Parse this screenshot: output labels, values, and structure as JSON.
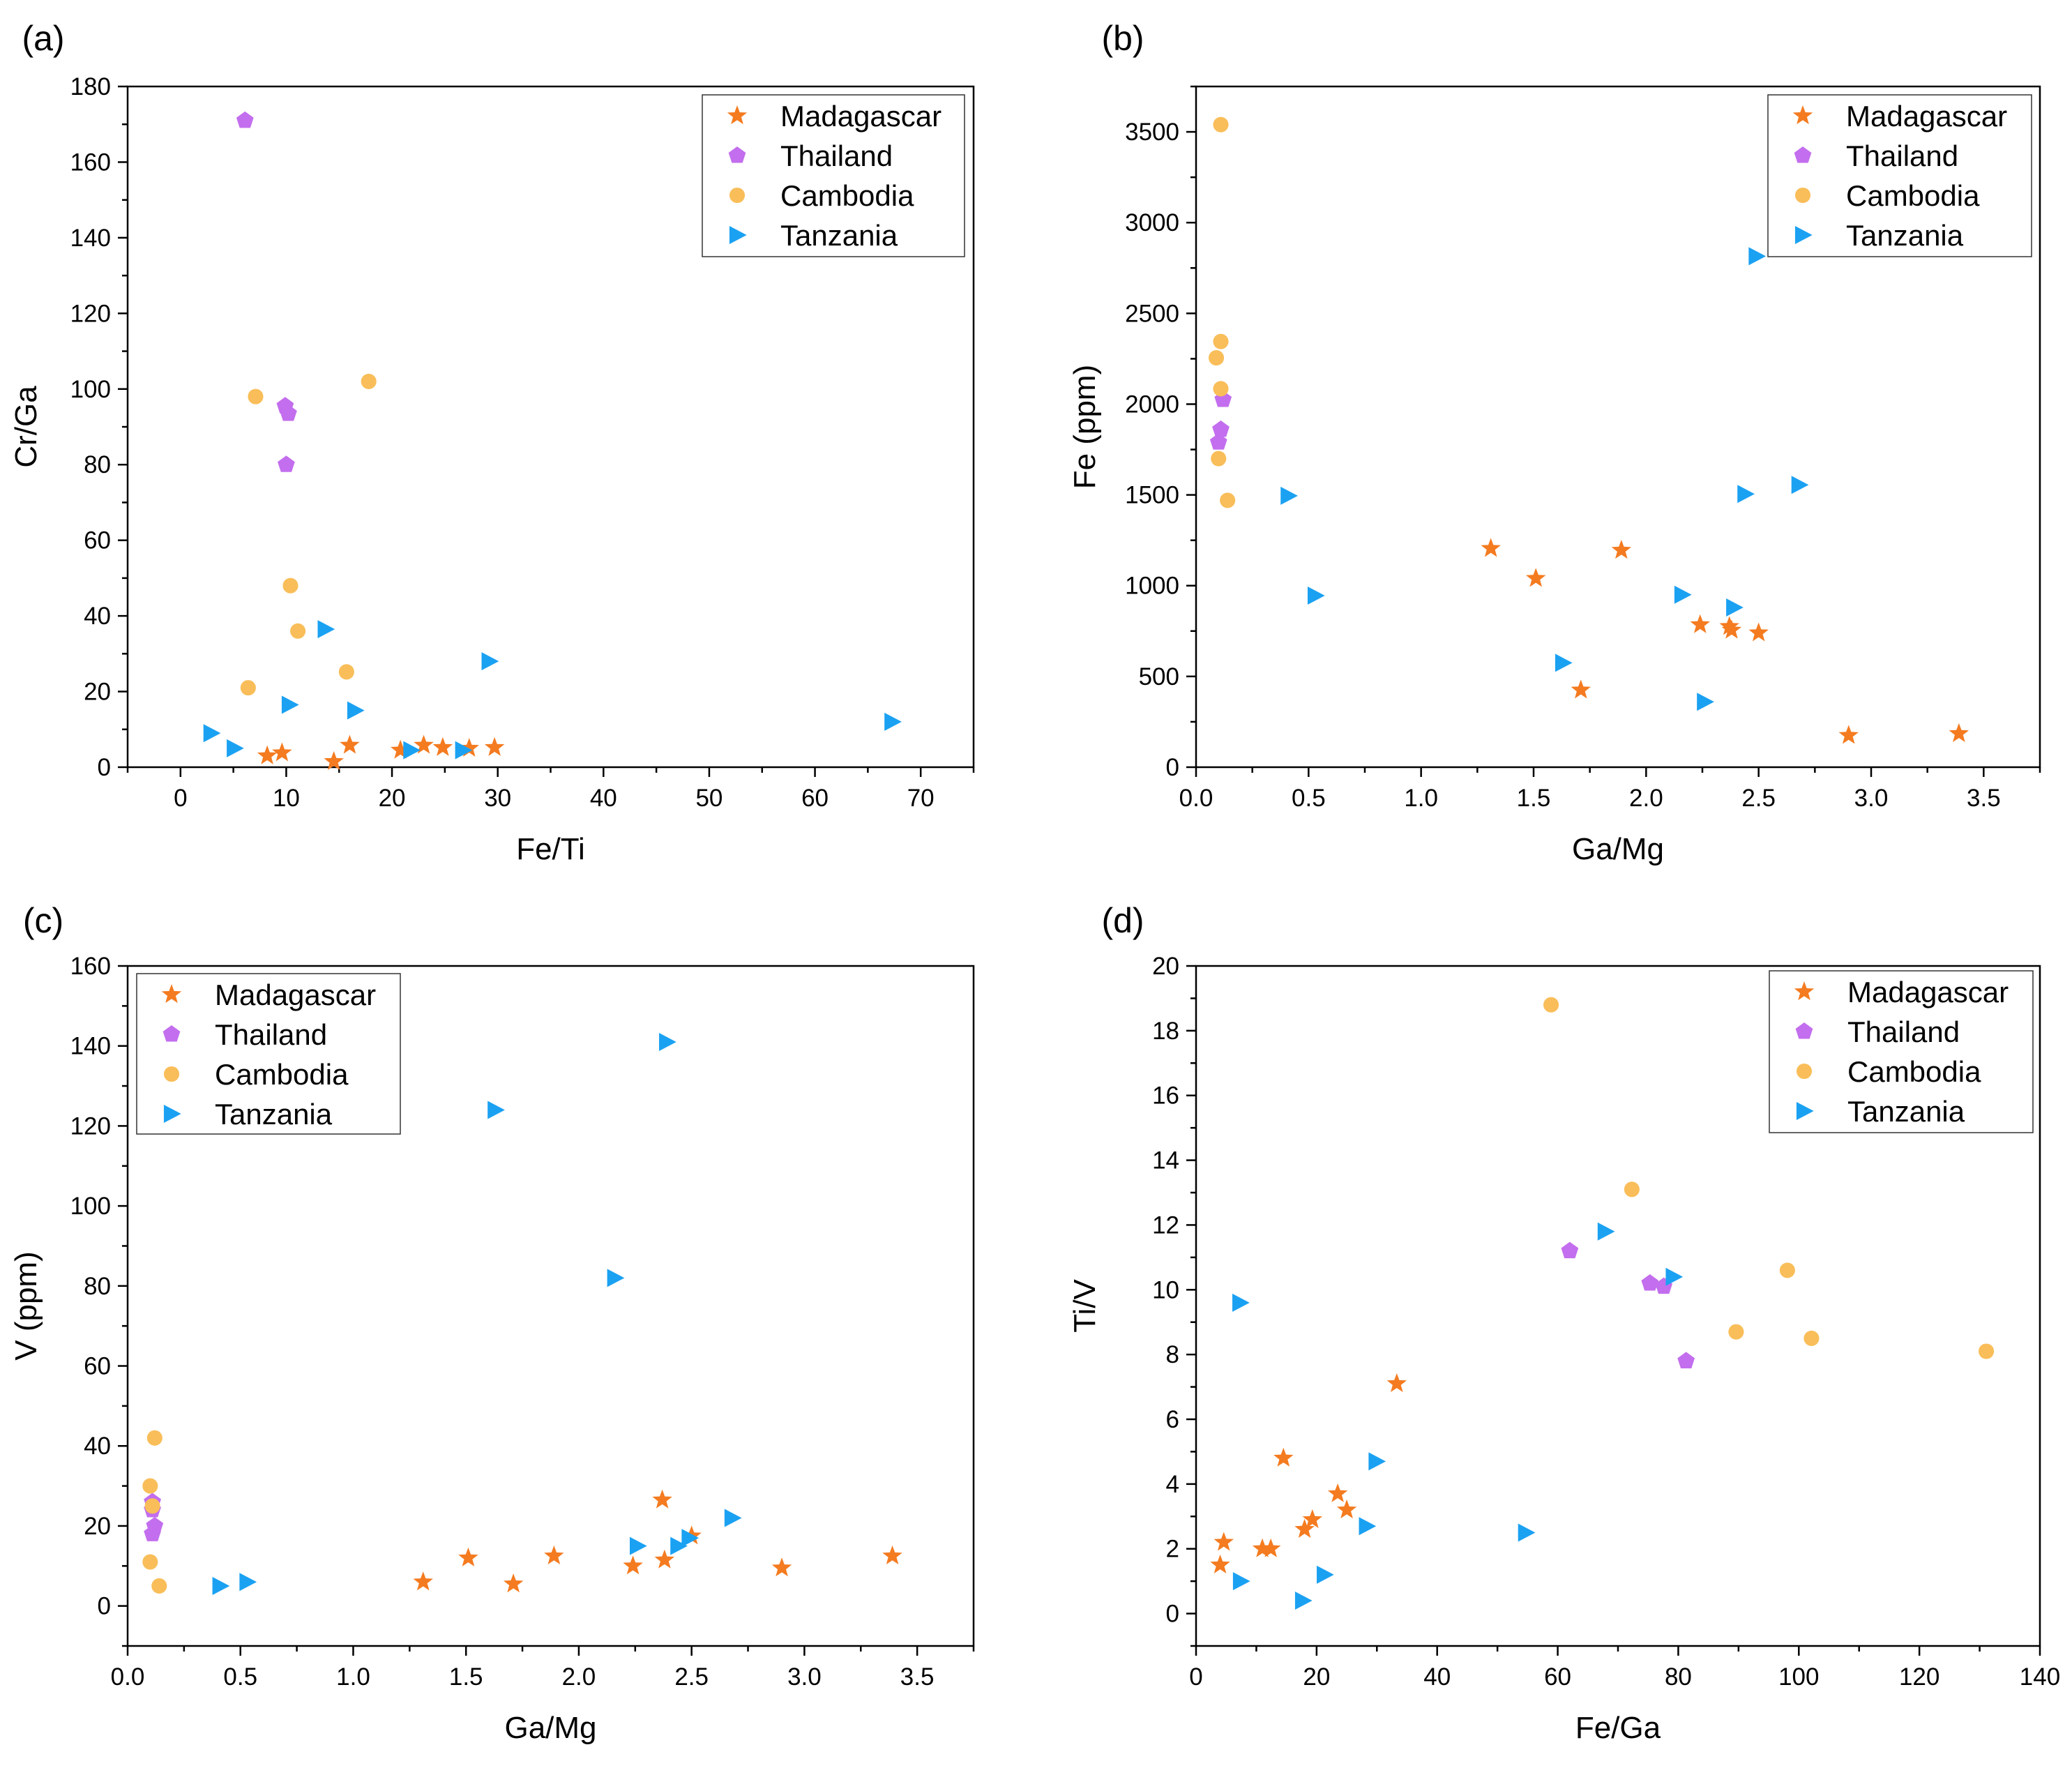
{
  "colors": {
    "Madagascar": "#F47B20",
    "Thailand": "#C36EEE",
    "Cambodia": "#F9BE59",
    "Tanzania": "#1BA1F2"
  },
  "legend_markers": {
    "Madagascar": "star",
    "Thailand": "pentagon",
    "Cambodia": "circle",
    "Tanzania": "triangle-right"
  },
  "chart_data": [
    {
      "type": "scatter",
      "panel": "(a)",
      "xlabel": "Fe/Ti",
      "ylabel": "Cr/Ga",
      "xlim": [
        -5,
        75
      ],
      "ylim": [
        0,
        180
      ],
      "xticks": [
        0,
        10,
        20,
        30,
        40,
        50,
        60,
        70
      ],
      "xtick_labels": [
        "0",
        "10",
        "20",
        "30",
        "40",
        "50",
        "60",
        "70"
      ],
      "yticks": [
        0,
        20,
        40,
        60,
        80,
        100,
        120,
        140,
        160,
        180
      ],
      "ytick_labels": [
        "0",
        "20",
        "40",
        "60",
        "80",
        "100",
        "120",
        "140",
        "160",
        "180"
      ],
      "legend": "top-right",
      "series": [
        {
          "name": "Madagascar",
          "x": [
            8.2,
            9.6,
            14.5,
            16,
            20.8,
            23,
            24.8,
            27.3,
            29.7
          ],
          "y": [
            3,
            3.8,
            1.5,
            5.8,
            4.5,
            5.8,
            5.2,
            5,
            5.2
          ]
        },
        {
          "name": "Thailand",
          "x": [
            6.1,
            9.9,
            10.2,
            10
          ],
          "y": [
            171,
            95.5,
            93.5,
            80
          ]
        },
        {
          "name": "Cambodia",
          "x": [
            7.1,
            17.8,
            10.4,
            11.1,
            15.7,
            6.4
          ],
          "y": [
            98,
            102,
            48,
            36,
            25.2,
            21
          ]
        },
        {
          "name": "Tanzania",
          "x": [
            13.7,
            29.2,
            10.3,
            16.5,
            2.9,
            5.1,
            21.8,
            26.7,
            67.3
          ],
          "y": [
            36.5,
            28,
            16.5,
            15,
            9,
            5,
            4.5,
            4.5,
            12
          ]
        }
      ]
    },
    {
      "type": "scatter",
      "panel": "(b)",
      "xlabel": "Ga/Mg",
      "ylabel": "Fe (ppm)",
      "xlim": [
        0,
        3.75
      ],
      "ylim": [
        0,
        3750
      ],
      "xticks": [
        0,
        0.5,
        1,
        1.5,
        2,
        2.5,
        3,
        3.5
      ],
      "xtick_labels": [
        "0.0",
        "0.5",
        "1.0",
        "1.5",
        "2.0",
        "2.5",
        "3.0",
        "3.5"
      ],
      "yticks": [
        0,
        500,
        1000,
        1500,
        2000,
        2500,
        3000,
        3500
      ],
      "ytick_labels": [
        "0",
        "500",
        "1000",
        "1500",
        "2000",
        "2500",
        "3000",
        "3500"
      ],
      "legend": "top-right",
      "series": [
        {
          "name": "Madagascar",
          "x": [
            1.31,
            1.51,
            1.71,
            1.89,
            2.24,
            2.37,
            2.38,
            2.5,
            2.9,
            3.39
          ],
          "y": [
            1205,
            1040,
            425,
            1195,
            785,
            775,
            755,
            740,
            175,
            185
          ]
        },
        {
          "name": "Thailand",
          "x": [
            0.12,
            0.11,
            0.1
          ],
          "y": [
            2025,
            1860,
            1790
          ]
        },
        {
          "name": "Cambodia",
          "x": [
            0.11,
            0.11,
            0.09,
            0.11,
            0.1,
            0.14
          ],
          "y": [
            3540,
            2345,
            2255,
            2085,
            1700,
            1470
          ]
        },
        {
          "name": "Tanzania",
          "x": [
            2.49,
            0.41,
            0.53,
            2.44,
            2.68,
            2.16,
            2.39,
            1.63,
            2.26
          ],
          "y": [
            2815,
            1495,
            945,
            1505,
            1555,
            950,
            880,
            575,
            360
          ]
        }
      ]
    },
    {
      "type": "scatter",
      "panel": "(c)",
      "xlabel": "Ga/Mg",
      "ylabel": "V (ppm)",
      "xlim": [
        0,
        3.75
      ],
      "ylim": [
        -10,
        160
      ],
      "xticks": [
        0,
        0.5,
        1,
        1.5,
        2,
        2.5,
        3,
        3.5
      ],
      "xtick_labels": [
        "0.0",
        "0.5",
        "1.0",
        "1.5",
        "2.0",
        "2.5",
        "3.0",
        "3.5"
      ],
      "yticks": [
        0,
        20,
        40,
        60,
        80,
        100,
        120,
        140,
        160
      ],
      "ytick_labels": [
        "0",
        "20",
        "40",
        "60",
        "80",
        "100",
        "120",
        "140",
        "160"
      ],
      "legend": "top-left",
      "series": [
        {
          "name": "Madagascar",
          "x": [
            1.31,
            1.51,
            1.71,
            1.89,
            2.24,
            2.37,
            2.38,
            2.5,
            2.9,
            3.39
          ],
          "y": [
            6,
            12,
            5.5,
            12.5,
            10,
            26.5,
            11.5,
            17.5,
            9.5,
            12.5
          ]
        },
        {
          "name": "Thailand",
          "x": [
            0.11,
            0.11,
            0.12,
            0.11
          ],
          "y": [
            26,
            24,
            20,
            18
          ]
        },
        {
          "name": "Cambodia",
          "x": [
            0.12,
            0.1,
            0.11,
            0.1,
            0.14
          ],
          "y": [
            42,
            30,
            25,
            11,
            5
          ]
        },
        {
          "name": "Tanzania",
          "x": [
            2.39,
            1.63,
            2.16,
            2.68,
            2.26,
            2.44,
            2.49,
            0.41,
            0.53
          ],
          "y": [
            141,
            124,
            82,
            22,
            15,
            15,
            17,
            5,
            6
          ]
        }
      ]
    },
    {
      "type": "scatter",
      "panel": "(d)",
      "xlabel": "Fe/Ga",
      "ylabel": "Ti/V",
      "xlim": [
        0,
        140
      ],
      "ylim": [
        -1,
        20
      ],
      "xticks": [
        0,
        20,
        40,
        60,
        80,
        100,
        120,
        140
      ],
      "xtick_labels": [
        "0",
        "20",
        "40",
        "60",
        "80",
        "100",
        "120",
        "140"
      ],
      "yticks": [
        0,
        2,
        4,
        6,
        8,
        10,
        12,
        14,
        16,
        18,
        20
      ],
      "ytick_labels": [
        "0",
        "2",
        "4",
        "6",
        "8",
        "10",
        "12",
        "14",
        "16",
        "18",
        "20"
      ],
      "legend": "top-right",
      "series": [
        {
          "name": "Madagascar",
          "x": [
            4,
            4.6,
            11,
            12.4,
            14.5,
            18,
            19.3,
            23.5,
            25,
            33.3
          ],
          "y": [
            1.5,
            2.2,
            2,
            2,
            4.8,
            2.6,
            2.9,
            3.7,
            3.2,
            7.1
          ]
        },
        {
          "name": "Thailand",
          "x": [
            62,
            75.3,
            77.6,
            81.3
          ],
          "y": [
            11.2,
            10.2,
            10.1,
            7.8
          ]
        },
        {
          "name": "Cambodia",
          "x": [
            58.9,
            72.3,
            98.1,
            89.6,
            102.1,
            131.1
          ],
          "y": [
            18.8,
            13.1,
            10.6,
            8.7,
            8.5,
            8.1
          ]
        },
        {
          "name": "Tanzania",
          "x": [
            7.3,
            7.4,
            17.7,
            21.3,
            28.3,
            29.9,
            54.7,
            67.9,
            79.2
          ],
          "y": [
            9.6,
            1,
            0.4,
            1.2,
            2.7,
            4.7,
            2.5,
            11.8,
            10.4
          ]
        }
      ]
    }
  ]
}
